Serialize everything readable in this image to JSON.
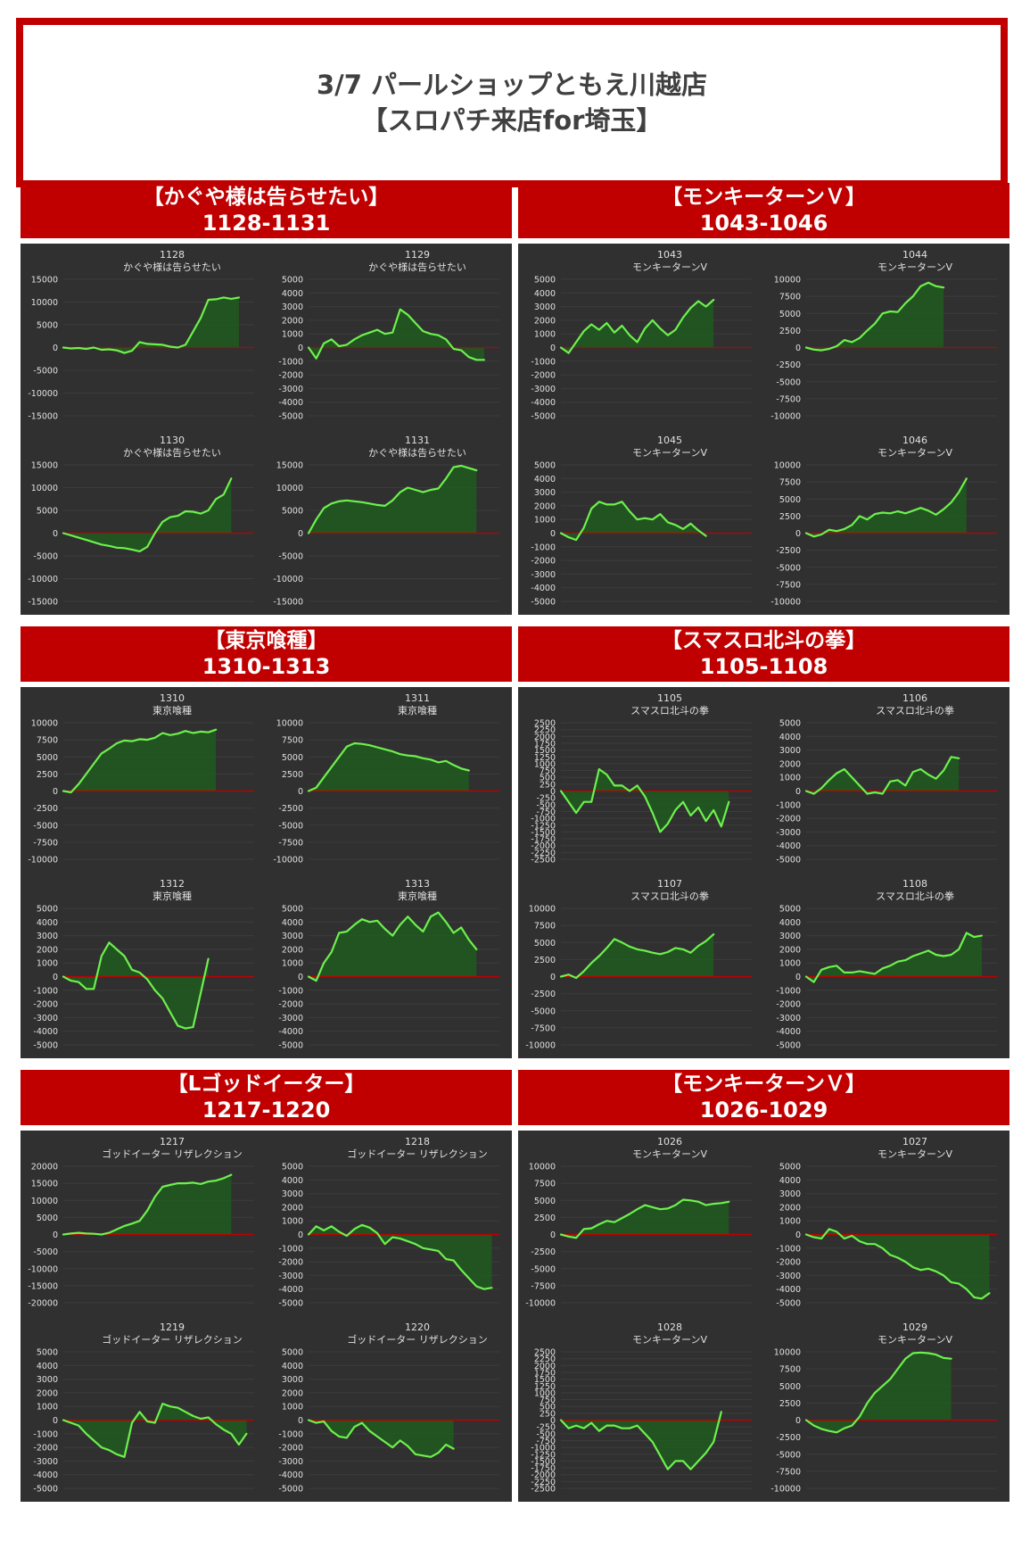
{
  "header": {
    "line1": "3/7 パールショップともえ川越店",
    "line2": "【スロパチ来店for埼玉】"
  },
  "colors": {
    "accent_red": "#c00000",
    "panel_bg": "#303030",
    "line": "#6ef04e",
    "fill": "#1f5a1f",
    "zero_line": "#c00000",
    "text": "#e0e0e0"
  },
  "sections": [
    {
      "title": "【かぐや様は告らせたい】",
      "range": "1128-1131"
    },
    {
      "title": "【モンキーターンＶ】",
      "range": "1043-1046"
    },
    {
      "title": "【東京喰種】",
      "range": "1310-1313"
    },
    {
      "title": "【スマスロ北斗の拳】",
      "range": "1105-1108"
    },
    {
      "title": "【Lゴッドイーター】",
      "range": "1217-1220"
    },
    {
      "title": "【モンキーターンＶ】",
      "range": "1026-1029"
    }
  ],
  "chart_data": [
    {
      "type": "area",
      "machine": "1128",
      "name": "かぐや様は告らせたい",
      "ylim": [
        -15000,
        15000
      ],
      "step": 5000,
      "values": [
        0,
        -200,
        -100,
        -300,
        0,
        -500,
        -400,
        -600,
        -1200,
        -700,
        1200,
        800,
        700,
        600,
        200,
        0,
        600,
        3500,
        6500,
        10500,
        10600,
        11000,
        10700,
        11000
      ]
    },
    {
      "type": "area",
      "machine": "1129",
      "name": "かぐや様は告らせたい",
      "ylim": [
        -5000,
        5000
      ],
      "step": 1000,
      "values": [
        0,
        -800,
        300,
        600,
        100,
        200,
        600,
        900,
        1100,
        1300,
        1000,
        1100,
        2800,
        2400,
        1800,
        1200,
        1000,
        900,
        600,
        -100,
        -200,
        -700,
        -900,
        -900
      ]
    },
    {
      "type": "area",
      "machine": "1130",
      "name": "かぐや様は告らせたい",
      "ylim": [
        -15000,
        15000
      ],
      "step": 5000,
      "values": [
        0,
        -500,
        -1000,
        -1500,
        -2000,
        -2500,
        -2800,
        -3200,
        -3300,
        -3600,
        -4000,
        -3000,
        0,
        2500,
        3500,
        3800,
        4800,
        4700,
        4300,
        5000,
        7500,
        8500,
        12000
      ]
    },
    {
      "type": "area",
      "machine": "1131",
      "name": "かぐや様は告らせたい",
      "ylim": [
        -15000,
        15000
      ],
      "step": 5000,
      "values": [
        0,
        3000,
        5500,
        6500,
        7000,
        7200,
        7000,
        6800,
        6500,
        6200,
        6000,
        7200,
        9000,
        10000,
        9500,
        9000,
        9500,
        9800,
        12000,
        14500,
        14800,
        14300,
        13800
      ]
    },
    {
      "type": "area",
      "machine": "1043",
      "name": "モンキーターンV",
      "ylim": [
        -5000,
        5000
      ],
      "step": 1000,
      "values": [
        0,
        -400,
        400,
        1200,
        1700,
        1300,
        1800,
        1100,
        1600,
        900,
        400,
        1400,
        2000,
        1400,
        900,
        1300,
        2200,
        2900,
        3400,
        3000,
        3500
      ]
    },
    {
      "type": "area",
      "machine": "1044",
      "name": "モンキーターンV",
      "ylim": [
        -10000,
        10000
      ],
      "step": 2500,
      "values": [
        0,
        -300,
        -400,
        -200,
        200,
        1100,
        800,
        1400,
        2500,
        3500,
        5000,
        5300,
        5200,
        6500,
        7500,
        9000,
        9500,
        9000,
        8800
      ]
    },
    {
      "type": "area",
      "machine": "1045",
      "name": "モンキーターンV",
      "ylim": [
        -5000,
        5000
      ],
      "step": 1000,
      "values": [
        0,
        -300,
        -500,
        400,
        1800,
        2300,
        2100,
        2100,
        2300,
        1600,
        1000,
        1100,
        1000,
        1400,
        800,
        600,
        300,
        700,
        200,
        -200
      ]
    },
    {
      "type": "area",
      "machine": "1046",
      "name": "モンキーターンV",
      "ylim": [
        -10000,
        10000
      ],
      "step": 2500,
      "values": [
        0,
        -500,
        -200,
        500,
        300,
        600,
        1200,
        2500,
        2000,
        2800,
        3000,
        2900,
        3200,
        2900,
        3300,
        3700,
        3300,
        2700,
        3500,
        4500,
        6000,
        8000
      ]
    },
    {
      "type": "area",
      "machine": "1310",
      "name": "東京喰種",
      "ylim": [
        -10000,
        10000
      ],
      "step": 2500,
      "values": [
        0,
        -200,
        1000,
        2500,
        4000,
        5500,
        6200,
        7000,
        7400,
        7300,
        7600,
        7500,
        7800,
        8500,
        8200,
        8400,
        8800,
        8500,
        8700,
        8600,
        9000
      ]
    },
    {
      "type": "area",
      "machine": "1311",
      "name": "東京喰種",
      "ylim": [
        -10000,
        10000
      ],
      "step": 2500,
      "values": [
        0,
        500,
        2000,
        3500,
        5000,
        6500,
        7000,
        6900,
        6700,
        6400,
        6100,
        5800,
        5400,
        5200,
        5100,
        4800,
        4600,
        4200,
        4400,
        3800,
        3300,
        3000
      ]
    },
    {
      "type": "area",
      "machine": "1312",
      "name": "東京喰種",
      "ylim": [
        -5000,
        5000
      ],
      "step": 1000,
      "values": [
        0,
        -300,
        -400,
        -900,
        -900,
        1500,
        2500,
        2000,
        1500,
        500,
        300,
        -200,
        -1000,
        -1600,
        -2600,
        -3600,
        -3800,
        -3700,
        -1200,
        1300
      ]
    },
    {
      "type": "area",
      "machine": "1313",
      "name": "東京喰種",
      "ylim": [
        -5000,
        5000
      ],
      "step": 1000,
      "values": [
        0,
        -300,
        1000,
        1800,
        3200,
        3300,
        3800,
        4200,
        4000,
        4100,
        3500,
        3000,
        3800,
        4400,
        3800,
        3300,
        4400,
        4700,
        4000,
        3200,
        3600,
        2700,
        2000
      ]
    },
    {
      "type": "area",
      "machine": "1105",
      "name": "スマスロ北斗の拳",
      "ylim": [
        -2500,
        2500
      ],
      "step": 250,
      "values": [
        0,
        -400,
        -800,
        -400,
        -400,
        800,
        600,
        200,
        200,
        0,
        200,
        -200,
        -800,
        -1500,
        -1200,
        -700,
        -400,
        -900,
        -600,
        -1100,
        -700,
        -1300,
        -400
      ]
    },
    {
      "type": "area",
      "machine": "1106",
      "name": "スマスロ北斗の拳",
      "ylim": [
        -5000,
        5000
      ],
      "step": 1000,
      "values": [
        0,
        -200,
        200,
        800,
        1300,
        1600,
        1000,
        400,
        -200,
        -100,
        -200,
        700,
        800,
        400,
        1400,
        1600,
        1200,
        900,
        1500,
        2500,
        2400
      ]
    },
    {
      "type": "area",
      "machine": "1107",
      "name": "スマスロ北斗の拳",
      "ylim": [
        -10000,
        10000
      ],
      "step": 2500,
      "values": [
        0,
        300,
        -200,
        800,
        2000,
        3000,
        4200,
        5500,
        5000,
        4400,
        4000,
        3800,
        3500,
        3300,
        3600,
        4200,
        4000,
        3500,
        4500,
        5200,
        6200
      ]
    },
    {
      "type": "area",
      "machine": "1108",
      "name": "スマスロ北斗の拳",
      "ylim": [
        -5000,
        5000
      ],
      "step": 1000,
      "values": [
        0,
        -400,
        500,
        700,
        800,
        300,
        300,
        400,
        300,
        200,
        600,
        800,
        1100,
        1200,
        1500,
        1700,
        1900,
        1600,
        1500,
        1600,
        2000,
        3200,
        2900,
        3000
      ]
    },
    {
      "type": "area",
      "machine": "1217",
      "name": "ゴッドイーター リザレクション",
      "ylim": [
        -20000,
        20000
      ],
      "step": 5000,
      "values": [
        0,
        300,
        500,
        300,
        200,
        0,
        500,
        1500,
        2500,
        3200,
        4000,
        7000,
        11000,
        14000,
        14500,
        15000,
        15000,
        15200,
        14800,
        15500,
        15800,
        16500,
        17500
      ]
    },
    {
      "type": "area",
      "machine": "1218",
      "name": "ゴッドイーター リザレクション",
      "ylim": [
        -5000,
        5000
      ],
      "step": 1000,
      "values": [
        0,
        600,
        300,
        600,
        200,
        -100,
        400,
        700,
        500,
        100,
        -700,
        -200,
        -300,
        -500,
        -700,
        -1000,
        -1100,
        -1200,
        -1800,
        -1900,
        -2600,
        -3200,
        -3800,
        -4000,
        -3900
      ]
    },
    {
      "type": "area",
      "machine": "1219",
      "name": "ゴッドイーター リザレクション",
      "ylim": [
        -5000,
        5000
      ],
      "step": 1000,
      "values": [
        0,
        -200,
        -400,
        -1000,
        -1500,
        -2000,
        -2200,
        -2500,
        -2700,
        -200,
        600,
        -100,
        -200,
        1200,
        1000,
        900,
        600,
        300,
        100,
        200,
        -300,
        -700,
        -1000,
        -1800,
        -1000
      ]
    },
    {
      "type": "area",
      "machine": "1220",
      "name": "ゴッドイーター リザレクション",
      "ylim": [
        -5000,
        5000
      ],
      "step": 1000,
      "values": [
        0,
        -200,
        -100,
        -800,
        -1200,
        -1300,
        -500,
        -200,
        -800,
        -1200,
        -1600,
        -2000,
        -1500,
        -1900,
        -2500,
        -2600,
        -2700,
        -2400,
        -1800,
        -2100
      ]
    },
    {
      "type": "area",
      "machine": "1026",
      "name": "モンキーターンV",
      "ylim": [
        -10000,
        10000
      ],
      "step": 2500,
      "values": [
        0,
        -300,
        -500,
        800,
        900,
        1500,
        2000,
        1800,
        2400,
        3000,
        3700,
        4300,
        4000,
        3700,
        3800,
        4300,
        5100,
        5000,
        4800,
        4300,
        4500,
        4600,
        4800
      ]
    },
    {
      "type": "area",
      "machine": "1027",
      "name": "モンキーターンV",
      "ylim": [
        -5000,
        5000
      ],
      "step": 1000,
      "values": [
        0,
        -200,
        -300,
        400,
        200,
        -300,
        -100,
        -500,
        -700,
        -700,
        -1000,
        -1500,
        -1700,
        -2000,
        -2400,
        -2600,
        -2500,
        -2700,
        -3000,
        -3500,
        -3600,
        -4000,
        -4600,
        -4700,
        -4300
      ]
    },
    {
      "type": "area",
      "machine": "1028",
      "name": "モンキーターンV",
      "ylim": [
        -2500,
        2500
      ],
      "step": 250,
      "values": [
        0,
        -300,
        -200,
        -300,
        -100,
        -400,
        -200,
        -200,
        -300,
        -300,
        -200,
        -500,
        -800,
        -1300,
        -1800,
        -1500,
        -1500,
        -1800,
        -1500,
        -1200,
        -800,
        300
      ]
    },
    {
      "type": "area",
      "machine": "1029",
      "name": "モンキーターンV",
      "ylim": [
        -10000,
        10000
      ],
      "step": 2500,
      "values": [
        0,
        -800,
        -1300,
        -1600,
        -1800,
        -1200,
        -800,
        500,
        2500,
        4000,
        5000,
        6000,
        7500,
        9000,
        9800,
        9900,
        9800,
        9600,
        9100,
        9000
      ]
    }
  ]
}
